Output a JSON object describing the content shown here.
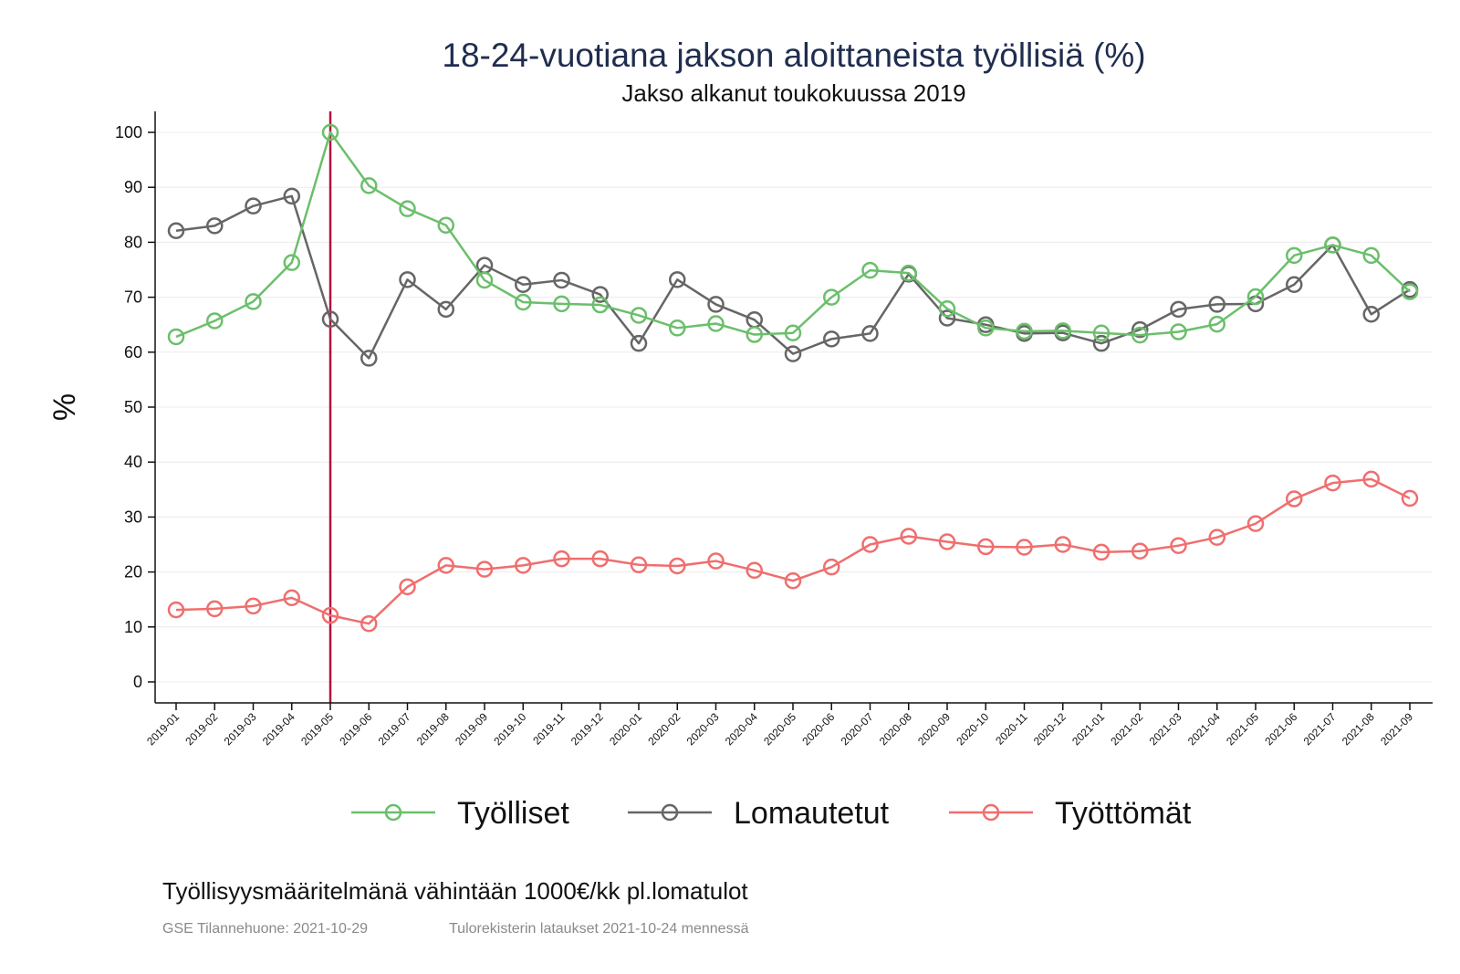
{
  "chart_data": {
    "type": "line",
    "title": "18-24-vuotiana jakson aloittaneista työllisiä (%)",
    "subtitle": "Jakso alkanut toukokuussa 2019",
    "ylabel": "%",
    "xlabel": "",
    "ylim": [
      0,
      100
    ],
    "yticks": [
      0,
      10,
      20,
      30,
      40,
      50,
      60,
      70,
      80,
      90,
      100
    ],
    "grid": true,
    "legend_position": "bottom",
    "reference_line": {
      "x": "2019-05",
      "color": "#b0123d"
    },
    "categories": [
      "2019-01",
      "2019-02",
      "2019-03",
      "2019-04",
      "2019-05",
      "2019-06",
      "2019-07",
      "2019-08",
      "2019-09",
      "2019-10",
      "2019-11",
      "2019-12",
      "2020-01",
      "2020-02",
      "2020-03",
      "2020-04",
      "2020-05",
      "2020-06",
      "2020-07",
      "2020-08",
      "2020-09",
      "2020-10",
      "2020-11",
      "2020-12",
      "2021-01",
      "2021-02",
      "2021-03",
      "2021-04",
      "2021-05",
      "2021-06",
      "2021-07",
      "2021-08",
      "2021-09"
    ],
    "series": [
      {
        "name": "Lomautetut",
        "color": "#666666",
        "values": [
          82.1,
          83.0,
          86.6,
          88.4,
          66.0,
          58.9,
          73.2,
          67.8,
          75.8,
          72.3,
          73.1,
          70.5,
          61.6,
          73.2,
          68.7,
          65.9,
          59.7,
          62.4,
          63.4,
          74.2,
          66.2,
          65.0,
          63.4,
          63.5,
          61.6,
          64.1,
          67.8,
          68.7,
          68.8,
          72.3,
          79.5,
          66.9,
          71.4
        ]
      },
      {
        "name": "Työlliset",
        "color": "#6bbf6b",
        "values": [
          62.8,
          65.7,
          69.2,
          76.3,
          100.0,
          90.3,
          86.1,
          83.1,
          73.1,
          69.1,
          68.8,
          68.6,
          66.7,
          64.4,
          65.2,
          63.2,
          63.5,
          70.0,
          74.9,
          74.4,
          67.9,
          64.4,
          63.8,
          63.9,
          63.5,
          63.1,
          63.7,
          65.1,
          70.1,
          77.6,
          79.5,
          77.6,
          71.0
        ]
      },
      {
        "name": "Työttömät",
        "color": "#f06e6e",
        "values": [
          13.1,
          13.3,
          13.8,
          15.3,
          12.1,
          10.6,
          17.3,
          21.2,
          20.5,
          21.2,
          22.4,
          22.4,
          21.3,
          21.1,
          22.0,
          20.3,
          18.4,
          20.9,
          25.0,
          26.5,
          25.5,
          24.6,
          24.5,
          25.0,
          23.6,
          23.8,
          24.8,
          26.3,
          28.8,
          33.3,
          36.2,
          36.9,
          33.4
        ]
      }
    ],
    "legend_order": [
      "Työlliset",
      "Lomautetut",
      "Työttömät"
    ]
  },
  "footer": {
    "note": "Työllisyysmääritelmänä vähintään 1000€/kk pl.lomatulot",
    "source": "GSE Tilannehuone: 2021-10-29",
    "updated": "Tulorekisterin lataukset 2021-10-24 mennessä"
  }
}
